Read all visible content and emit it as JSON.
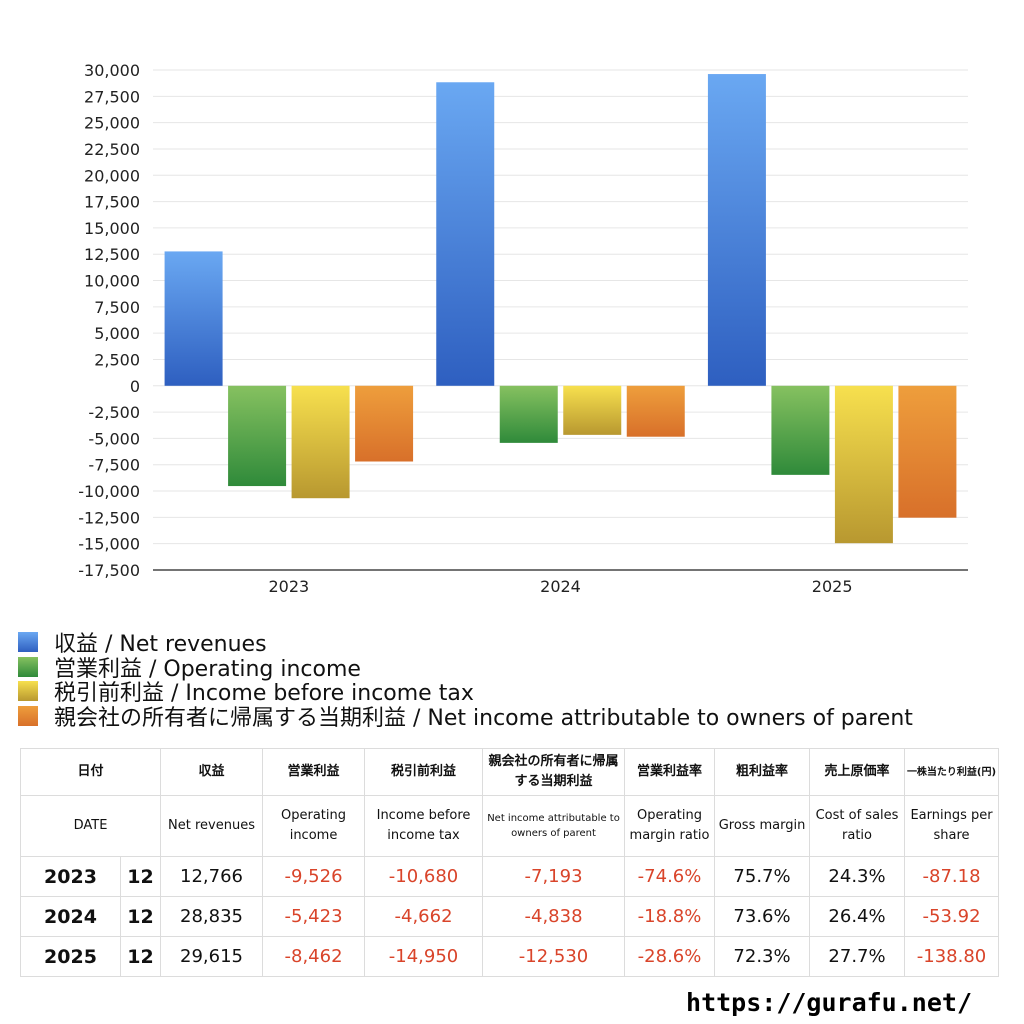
{
  "chart_data": {
    "type": "bar",
    "categories": [
      "2023",
      "2024",
      "2025"
    ],
    "ylim": [
      -17500,
      30000
    ],
    "ytick_step": 2500,
    "yticks": [
      "30,000",
      "27,500",
      "25,000",
      "22,500",
      "20,000",
      "17,500",
      "15,000",
      "12,500",
      "10,000",
      "7,500",
      "5,000",
      "2,500",
      "0",
      "-2,500",
      "-5,000",
      "-7,500",
      "-10,000",
      "-12,500",
      "-15,000",
      "-17,500"
    ],
    "series": [
      {
        "name": "収益 / Net revenues",
        "values": [
          12766,
          28835,
          29615
        ],
        "color_top": "#6aa8f2",
        "color_bottom": "#2e5fc0"
      },
      {
        "name": "営業利益 / Operating income",
        "values": [
          -9526,
          -5423,
          -8462
        ],
        "color_top": "#86c160",
        "color_bottom": "#2f8a3a"
      },
      {
        "name": "税引前利益 / Income before income tax",
        "values": [
          -10680,
          -4662,
          -14950
        ],
        "color_top": "#f7e04e",
        "color_bottom": "#b89830"
      },
      {
        "name": "親会社の所有者に帰属する当期利益 / Net income attributable to owners of parent",
        "values": [
          -7193,
          -4838,
          -12530
        ],
        "color_top": "#ee9e3c",
        "color_bottom": "#d8702a"
      }
    ]
  },
  "table": {
    "header_jp": [
      "日付",
      "収益",
      "営業利益",
      "税引前利益",
      "親会社の所有者に帰属する当期利益",
      "営業利益率",
      "粗利益率",
      "売上原価率",
      "一株当たり利益(円)"
    ],
    "header_en": [
      "DATE",
      "Net revenues",
      "Operating income",
      "Income before income tax",
      "Net income attributable to owners of parent",
      "Operating margin ratio",
      "Gross margin",
      "Cost of sales ratio",
      "Earnings per share"
    ],
    "rows": [
      {
        "year": "2023",
        "month": "12",
        "revenues": "12,766",
        "operating": "-9,526",
        "pretax": "-10,680",
        "net": "-7,193",
        "op_margin": "-74.6%",
        "gross": "75.7%",
        "cost": "24.3%",
        "eps": "-87.18"
      },
      {
        "year": "2024",
        "month": "12",
        "revenues": "28,835",
        "operating": "-5,423",
        "pretax": "-4,662",
        "net": "-4,838",
        "op_margin": "-18.8%",
        "gross": "73.6%",
        "cost": "26.4%",
        "eps": "-53.92"
      },
      {
        "year": "2025",
        "month": "12",
        "revenues": "29,615",
        "operating": "-8,462",
        "pretax": "-14,950",
        "net": "-12,530",
        "op_margin": "-28.6%",
        "gross": "72.3%",
        "cost": "27.7%",
        "eps": "-138.80"
      }
    ]
  },
  "footer": {
    "site": "https://gurafu.net/"
  },
  "colors": {
    "negative": "#d9442a",
    "grid": "#e6e6e6",
    "axis": "#222222"
  }
}
